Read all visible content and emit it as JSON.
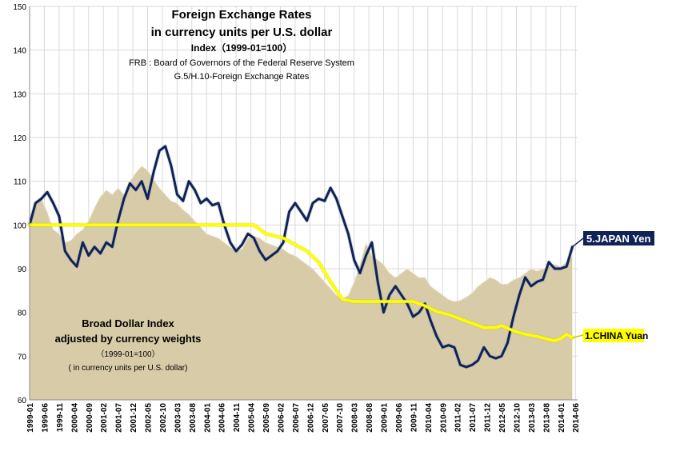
{
  "chart_data": {
    "type": "line",
    "title": "Foreign Exchange Rates",
    "subtitle": "in currency units per U.S. dollar",
    "index_note": "Index（1999-01=100）",
    "source_line_1": "FRB : Board of Governors of the Federal Reserve System",
    "source_line_2": "G.5/H.10-Foreign Exchange Rates",
    "area_caption": {
      "line_1": "Broad Dollar Index",
      "line_2": "adjusted by currency weights",
      "line_3": "（1999-01=100）",
      "line_4": "( in currency units per U.S. dollar)"
    },
    "ylim": [
      60,
      150
    ],
    "y_ticks": [
      60,
      70,
      80,
      90,
      100,
      110,
      120,
      130,
      140,
      150
    ],
    "x_tick_labels": [
      "1999-01",
      "1999-06",
      "1999-11",
      "2000-04",
      "2000-09",
      "2001-02",
      "2001-07",
      "2001-12",
      "2002-05",
      "2002-10",
      "2003-03",
      "2003-08",
      "2004-01",
      "2004-06",
      "2004-11",
      "2005-04",
      "2005-09",
      "2006-02",
      "2006-07",
      "2006-12",
      "2007-05",
      "2007-10",
      "2008-03",
      "2008-08",
      "2009-01",
      "2009-06",
      "2009-11",
      "2010-04",
      "2010-09",
      "2011-02",
      "2011-07",
      "2011-12",
      "2012-05",
      "2012-10",
      "2013-03",
      "2013-08",
      "2014-01",
      "2014-06"
    ],
    "grid": true,
    "colors": {
      "area_fill": "#d8cba8",
      "japan": "#0f2357",
      "china": "#ffff00",
      "japan_label_bg": "#0f2357",
      "china_label_bg": "#ffff00"
    },
    "series": [
      {
        "name": "Broad Dollar Index",
        "kind": "area",
        "points": [
          [
            0,
            100
          ],
          [
            2,
            104.5
          ],
          [
            4,
            106
          ],
          [
            6,
            103
          ],
          [
            8,
            99
          ],
          [
            10,
            98
          ],
          [
            12,
            96
          ],
          [
            14,
            96.5
          ],
          [
            16,
            98
          ],
          [
            18,
            99
          ],
          [
            20,
            101
          ],
          [
            22,
            104
          ],
          [
            24,
            106.5
          ],
          [
            26,
            108
          ],
          [
            28,
            107
          ],
          [
            30,
            108.5
          ],
          [
            32,
            107
          ],
          [
            34,
            110
          ],
          [
            36,
            112
          ],
          [
            38,
            113.5
          ],
          [
            40,
            112.5
          ],
          [
            42,
            110.5
          ],
          [
            44,
            108.5
          ],
          [
            46,
            107
          ],
          [
            48,
            105.5
          ],
          [
            50,
            105
          ],
          [
            52,
            103.5
          ],
          [
            54,
            102.5
          ],
          [
            56,
            101
          ],
          [
            58,
            99.5
          ],
          [
            60,
            98
          ],
          [
            62,
            97.5
          ],
          [
            64,
            97
          ],
          [
            66,
            96
          ],
          [
            68,
            95
          ],
          [
            70,
            94
          ],
          [
            72,
            94.5
          ],
          [
            74,
            97
          ],
          [
            76,
            97.5
          ],
          [
            78,
            97
          ],
          [
            80,
            96
          ],
          [
            82,
            95.5
          ],
          [
            84,
            95
          ],
          [
            86,
            94.5
          ],
          [
            88,
            93.5
          ],
          [
            90,
            93
          ],
          [
            92,
            92
          ],
          [
            94,
            91
          ],
          [
            96,
            90
          ],
          [
            98,
            88.5
          ],
          [
            100,
            87
          ],
          [
            102,
            85.5
          ],
          [
            104,
            84
          ],
          [
            106,
            83
          ],
          [
            108,
            84
          ],
          [
            110,
            87
          ],
          [
            112,
            91
          ],
          [
            114,
            96
          ],
          [
            116,
            93
          ],
          [
            118,
            92
          ],
          [
            120,
            91
          ],
          [
            122,
            89
          ],
          [
            124,
            88
          ],
          [
            126,
            89
          ],
          [
            128,
            90
          ],
          [
            130,
            89
          ],
          [
            132,
            88
          ],
          [
            134,
            88
          ],
          [
            136,
            86
          ],
          [
            138,
            85
          ],
          [
            140,
            84
          ],
          [
            142,
            83
          ],
          [
            144,
            82.5
          ],
          [
            146,
            82.8
          ],
          [
            148,
            83.5
          ],
          [
            150,
            84.5
          ],
          [
            152,
            86
          ],
          [
            154,
            87
          ],
          [
            156,
            88
          ],
          [
            158,
            87.5
          ],
          [
            160,
            86.5
          ],
          [
            162,
            86.5
          ],
          [
            164,
            87.5
          ],
          [
            166,
            88
          ],
          [
            168,
            89
          ],
          [
            170,
            90
          ],
          [
            172,
            89.5
          ],
          [
            174,
            90
          ],
          [
            176,
            90.5
          ],
          [
            178,
            91
          ],
          [
            180,
            90.5
          ],
          [
            182,
            91.5
          ],
          [
            184,
            93
          ]
        ]
      },
      {
        "name": "5.JAPAN Yen",
        "kind": "line",
        "points": [
          [
            0,
            100
          ],
          [
            2,
            105
          ],
          [
            4,
            106
          ],
          [
            6,
            107.5
          ],
          [
            8,
            105
          ],
          [
            10,
            102
          ],
          [
            12,
            94
          ],
          [
            14,
            92
          ],
          [
            16,
            90.5
          ],
          [
            18,
            96
          ],
          [
            20,
            93
          ],
          [
            22,
            95
          ],
          [
            24,
            93.5
          ],
          [
            26,
            96
          ],
          [
            28,
            95
          ],
          [
            30,
            101
          ],
          [
            32,
            106
          ],
          [
            34,
            109.5
          ],
          [
            36,
            108
          ],
          [
            38,
            110
          ],
          [
            40,
            106
          ],
          [
            42,
            112
          ],
          [
            44,
            117
          ],
          [
            46,
            118
          ],
          [
            48,
            113.5
          ],
          [
            50,
            107
          ],
          [
            52,
            105.5
          ],
          [
            54,
            110
          ],
          [
            56,
            108
          ],
          [
            58,
            105
          ],
          [
            60,
            106
          ],
          [
            62,
            104.5
          ],
          [
            64,
            105
          ],
          [
            66,
            100
          ],
          [
            68,
            96
          ],
          [
            70,
            94
          ],
          [
            72,
            95.5
          ],
          [
            74,
            98
          ],
          [
            76,
            97
          ],
          [
            78,
            94
          ],
          [
            80,
            92
          ],
          [
            82,
            93
          ],
          [
            84,
            94
          ],
          [
            86,
            96
          ],
          [
            88,
            103
          ],
          [
            90,
            105
          ],
          [
            92,
            103
          ],
          [
            94,
            101
          ],
          [
            96,
            105
          ],
          [
            98,
            106
          ],
          [
            100,
            105.5
          ],
          [
            102,
            108.5
          ],
          [
            104,
            106
          ],
          [
            106,
            102
          ],
          [
            108,
            98
          ],
          [
            110,
            92
          ],
          [
            112,
            89
          ],
          [
            114,
            93
          ],
          [
            116,
            96
          ],
          [
            118,
            87
          ],
          [
            120,
            80
          ],
          [
            122,
            84
          ],
          [
            124,
            86
          ],
          [
            126,
            84
          ],
          [
            128,
            82
          ],
          [
            130,
            79
          ],
          [
            132,
            80
          ],
          [
            134,
            82
          ],
          [
            136,
            78
          ],
          [
            138,
            74.5
          ],
          [
            140,
            72
          ],
          [
            142,
            72.5
          ],
          [
            144,
            72
          ],
          [
            146,
            68
          ],
          [
            148,
            67.5
          ],
          [
            150,
            68
          ],
          [
            152,
            69
          ],
          [
            154,
            72
          ],
          [
            156,
            70
          ],
          [
            158,
            69.5
          ],
          [
            160,
            70
          ],
          [
            162,
            73
          ],
          [
            164,
            79
          ],
          [
            166,
            84
          ],
          [
            168,
            88
          ],
          [
            170,
            86
          ],
          [
            172,
            87
          ],
          [
            174,
            87.5
          ],
          [
            176,
            91.5
          ],
          [
            178,
            90
          ],
          [
            180,
            90
          ],
          [
            182,
            90.5
          ],
          [
            184,
            95
          ]
        ]
      },
      {
        "name": "1.CHINA Yuan",
        "kind": "line",
        "points": [
          [
            0,
            100
          ],
          [
            76,
            100
          ],
          [
            80,
            98
          ],
          [
            86,
            97
          ],
          [
            90,
            95.5
          ],
          [
            94,
            94
          ],
          [
            98,
            91.5
          ],
          [
            102,
            87
          ],
          [
            106,
            83
          ],
          [
            110,
            82.5
          ],
          [
            118,
            82.5
          ],
          [
            130,
            82.5
          ],
          [
            134,
            81.5
          ],
          [
            138,
            80.2
          ],
          [
            142,
            79.5
          ],
          [
            146,
            78.5
          ],
          [
            150,
            77.5
          ],
          [
            154,
            76.5
          ],
          [
            158,
            76.5
          ],
          [
            160,
            77
          ],
          [
            164,
            75.8
          ],
          [
            168,
            75
          ],
          [
            172,
            74.5
          ],
          [
            176,
            73.8
          ],
          [
            178,
            73.5
          ],
          [
            180,
            74
          ],
          [
            182,
            75
          ],
          [
            184,
            74.2
          ]
        ]
      }
    ],
    "series_labels": {
      "japan": "5.JAPAN Yen",
      "china": "1.CHINA Yuan"
    }
  }
}
